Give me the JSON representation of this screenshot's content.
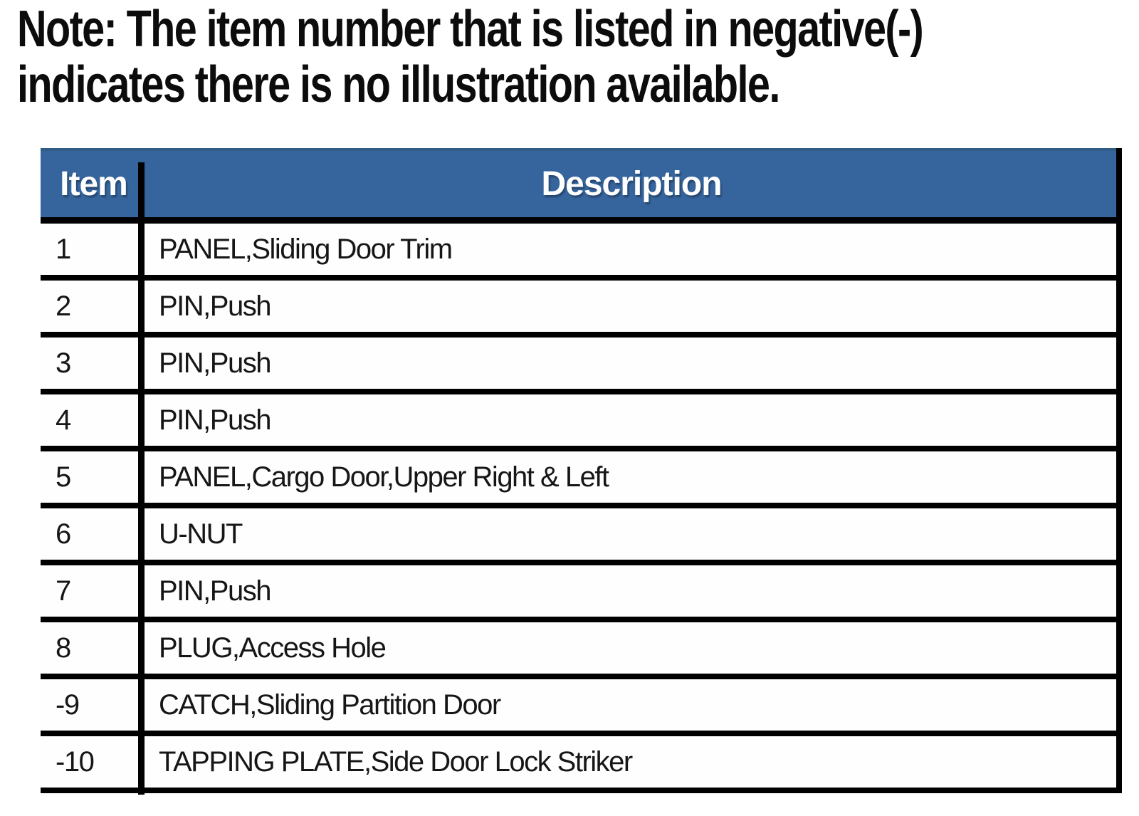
{
  "note": {
    "line1": "Note: The item number that is listed in negative(-)",
    "line2": "indicates there is no illustration available."
  },
  "table": {
    "headers": [
      "Item",
      "Description"
    ],
    "rows": [
      {
        "item": "1",
        "description": "PANEL,Sliding Door Trim"
      },
      {
        "item": "2",
        "description": "PIN,Push"
      },
      {
        "item": "3",
        "description": "PIN,Push"
      },
      {
        "item": "4",
        "description": "PIN,Push"
      },
      {
        "item": "5",
        "description": "PANEL,Cargo Door,Upper Right & Left"
      },
      {
        "item": "6",
        "description": "U-NUT"
      },
      {
        "item": "7",
        "description": "PIN,Push"
      },
      {
        "item": "8",
        "description": "PLUG,Access Hole"
      },
      {
        "item": "-9",
        "description": "CATCH,Sliding Partition Door"
      },
      {
        "item": "-10",
        "description": "TAPPING PLATE,Side Door Lock Striker"
      }
    ],
    "colors": {
      "header_bg": "#36659e",
      "header_bg_top_edge": "#2f5d85",
      "header_text": "#ffffff",
      "rule": "#000000",
      "row_bg": "#fefefe",
      "body_text": "#161616"
    }
  }
}
